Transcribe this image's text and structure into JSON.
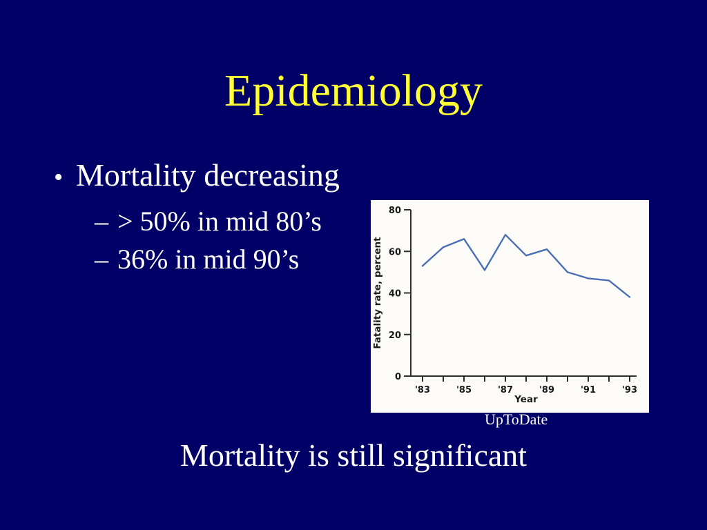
{
  "slide": {
    "title": "Epidemiology",
    "bullets": [
      {
        "marker": "•",
        "text": "Mortality decreasing",
        "level": 1
      },
      {
        "marker": "–",
        "text": "> 50% in mid 80’s",
        "level": 2
      },
      {
        "marker": "–",
        "text": "36% in mid 90’s",
        "level": 2
      }
    ],
    "caption": "UpToDate",
    "footer": "Mortality is still significant"
  },
  "colors": {
    "background": "#000066",
    "title": "#ffff33",
    "text": "#ffffff",
    "chart_bg": "#fcfbf8",
    "chart_line": "#4a6fb5",
    "chart_axis": "#2b2b2b"
  },
  "chart_data": {
    "type": "line",
    "title": "",
    "xlabel": "Year",
    "ylabel": "Fatality rate, percent",
    "x": [
      1983,
      1984,
      1985,
      1986,
      1987,
      1988,
      1989,
      1990,
      1991,
      1992,
      1993
    ],
    "values": [
      53,
      62,
      66,
      51,
      68,
      58,
      61,
      50,
      47,
      46,
      38
    ],
    "xtick_labels": [
      "'83",
      "'85",
      "'87",
      "'89",
      "'91",
      "'93"
    ],
    "yticks": [
      0,
      20,
      40,
      60,
      80
    ],
    "ylim": [
      0,
      80
    ],
    "grid": false,
    "legend": "none",
    "line_color": "#4a6fb5"
  }
}
